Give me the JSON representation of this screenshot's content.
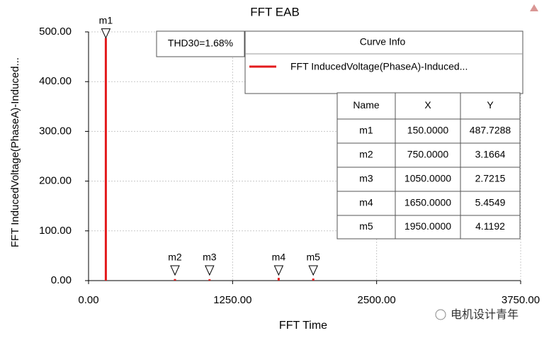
{
  "chart_data": {
    "type": "bar",
    "title": "FFT EAB",
    "x_label": "FFT Time",
    "y_label": "FFT InducedVoltage(PhaseA)-Induced...",
    "xlim": [
      0,
      3750
    ],
    "xticks": [
      {
        "value": 0,
        "label": "0.00"
      },
      {
        "value": 1250,
        "label": "1250.00"
      },
      {
        "value": 2500,
        "label": "2500.00"
      },
      {
        "value": 3750,
        "label": "3750.00"
      }
    ],
    "ylim": [
      0,
      500
    ],
    "yticks": [
      {
        "value": 0,
        "label": "0.00"
      },
      {
        "value": 100,
        "label": "100.00"
      },
      {
        "value": 200,
        "label": "200.00"
      },
      {
        "value": 300,
        "label": "300.00"
      },
      {
        "value": 400,
        "label": "400.00"
      },
      {
        "value": 500,
        "label": "500.00"
      }
    ],
    "grid": true,
    "series": [
      {
        "name": "FFT InducedVoltage(PhaseA)-Induced...",
        "color": "#e31a1c",
        "x": [
          150,
          750,
          1050,
          1650,
          1950
        ],
        "values": [
          487.7288,
          3.1664,
          2.7215,
          5.4549,
          4.1192
        ]
      }
    ],
    "annotation": "THD30=1.68%",
    "legend_title": "Curve Info",
    "marker_table": {
      "columns": [
        "Name",
        "X",
        "Y"
      ],
      "rows": [
        [
          "m1",
          "150.0000",
          "487.7288"
        ],
        [
          "m2",
          "750.0000",
          "3.1664"
        ],
        [
          "m3",
          "1050.0000",
          "2.7215"
        ],
        [
          "m4",
          "1650.0000",
          "5.4549"
        ],
        [
          "m5",
          "1950.0000",
          "4.1192"
        ]
      ]
    },
    "watermark": "电机设计青年"
  }
}
